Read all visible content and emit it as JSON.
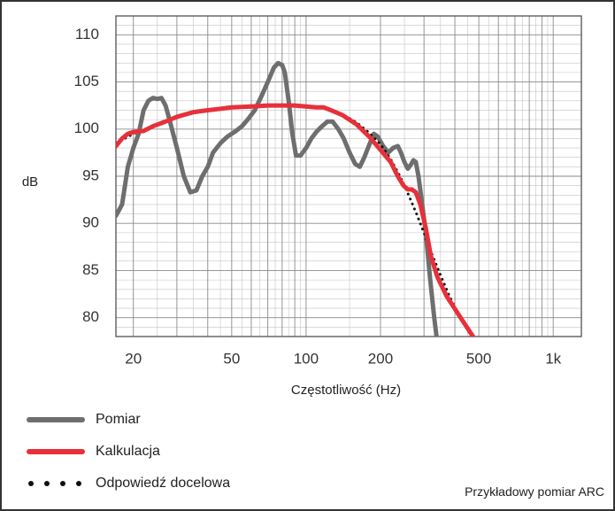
{
  "chart_data": {
    "type": "line",
    "xscale": "log",
    "xlim": [
      17,
      1300
    ],
    "ylim": [
      78,
      112
    ],
    "xlabel": "Częstotliwość (Hz)",
    "ylabel": "dB",
    "x_ticks": [
      {
        "value": 20,
        "label": "20"
      },
      {
        "value": 50,
        "label": "50"
      },
      {
        "value": 100,
        "label": "100"
      },
      {
        "value": 200,
        "label": "200"
      },
      {
        "value": 500,
        "label": "500"
      },
      {
        "value": 1000,
        "label": "1k"
      }
    ],
    "y_ticks": [
      {
        "value": 80,
        "label": "80"
      },
      {
        "value": 85,
        "label": "85"
      },
      {
        "value": 90,
        "label": "90"
      },
      {
        "value": 95,
        "label": "95"
      },
      {
        "value": 100,
        "label": "100"
      },
      {
        "value": 105,
        "label": "105"
      },
      {
        "value": 110,
        "label": "110"
      }
    ],
    "grid": true,
    "legend_position": "bottom-left",
    "series": [
      {
        "name": "Pomiar",
        "color": "#6e6e6e",
        "style": "solid",
        "points": [
          [
            17,
            90.8
          ],
          [
            18,
            92
          ],
          [
            19,
            96
          ],
          [
            20,
            98
          ],
          [
            21,
            99.5
          ],
          [
            22,
            102
          ],
          [
            23,
            103
          ],
          [
            24,
            103.3
          ],
          [
            25,
            103.2
          ],
          [
            26,
            103.3
          ],
          [
            27,
            102.5
          ],
          [
            28,
            101
          ],
          [
            30,
            98
          ],
          [
            32,
            95
          ],
          [
            34,
            93.3
          ],
          [
            36,
            93.5
          ],
          [
            38,
            95
          ],
          [
            40,
            96
          ],
          [
            42,
            97.5
          ],
          [
            45,
            98.5
          ],
          [
            48,
            99.2
          ],
          [
            52,
            99.8
          ],
          [
            55,
            100.3
          ],
          [
            58,
            101
          ],
          [
            62,
            102
          ],
          [
            66,
            103.5
          ],
          [
            70,
            105
          ],
          [
            74,
            106.5
          ],
          [
            77,
            107
          ],
          [
            80,
            106.8
          ],
          [
            82,
            106
          ],
          [
            85,
            103
          ],
          [
            88,
            99.5
          ],
          [
            91,
            97.2
          ],
          [
            95,
            97.2
          ],
          [
            100,
            98
          ],
          [
            105,
            99
          ],
          [
            110,
            99.7
          ],
          [
            116,
            100.3
          ],
          [
            122,
            100.8
          ],
          [
            128,
            100.8
          ],
          [
            135,
            100
          ],
          [
            142,
            99
          ],
          [
            150,
            97.5
          ],
          [
            158,
            96.3
          ],
          [
            165,
            96
          ],
          [
            172,
            97
          ],
          [
            180,
            98.3
          ],
          [
            188,
            99.5
          ],
          [
            195,
            99.2
          ],
          [
            205,
            98.2
          ],
          [
            215,
            97.5
          ],
          [
            225,
            98
          ],
          [
            235,
            98.2
          ],
          [
            242,
            97.5
          ],
          [
            250,
            96.5
          ],
          [
            258,
            95.8
          ],
          [
            265,
            96.2
          ],
          [
            272,
            96.7
          ],
          [
            278,
            96.5
          ],
          [
            285,
            95
          ],
          [
            295,
            92
          ],
          [
            305,
            89
          ],
          [
            318,
            84
          ],
          [
            330,
            80
          ],
          [
            338,
            77.8
          ]
        ]
      },
      {
        "name": "Kalkulacja",
        "color": "#e8303a",
        "style": "solid",
        "points": [
          [
            17,
            98.2
          ],
          [
            18,
            99
          ],
          [
            19,
            99.5
          ],
          [
            20,
            99.7
          ],
          [
            22,
            99.8
          ],
          [
            24,
            100.3
          ],
          [
            27,
            100.8
          ],
          [
            30,
            101.3
          ],
          [
            35,
            101.8
          ],
          [
            40,
            102
          ],
          [
            50,
            102.3
          ],
          [
            60,
            102.4
          ],
          [
            70,
            102.5
          ],
          [
            80,
            102.5
          ],
          [
            90,
            102.5
          ],
          [
            100,
            102.4
          ],
          [
            110,
            102.3
          ],
          [
            118,
            102.3
          ],
          [
            126,
            102
          ],
          [
            140,
            101.5
          ],
          [
            160,
            100.5
          ],
          [
            180,
            99.2
          ],
          [
            200,
            97.8
          ],
          [
            220,
            96.5
          ],
          [
            235,
            95
          ],
          [
            248,
            94
          ],
          [
            258,
            93.6
          ],
          [
            268,
            93.6
          ],
          [
            278,
            93.3
          ],
          [
            290,
            92
          ],
          [
            305,
            89.5
          ],
          [
            320,
            86.5
          ],
          [
            340,
            84.3
          ],
          [
            370,
            82.3
          ],
          [
            410,
            80.5
          ],
          [
            460,
            78.5
          ],
          [
            480,
            77.8
          ]
        ]
      },
      {
        "name": "Odpowiedź docelowa",
        "color": "#111111",
        "style": "dotted",
        "points": [
          [
            17,
            98.5
          ],
          [
            20,
            99.5
          ],
          [
            25,
            100.5
          ],
          [
            30,
            101.3
          ],
          [
            40,
            102
          ],
          [
            50,
            102.3
          ],
          [
            60,
            102.5
          ],
          [
            80,
            102.6
          ],
          [
            100,
            102.5
          ],
          [
            120,
            102.2
          ],
          [
            140,
            101.6
          ],
          [
            160,
            100.7
          ],
          [
            180,
            99.6
          ],
          [
            200,
            98.4
          ],
          [
            220,
            96.8
          ],
          [
            240,
            95
          ],
          [
            260,
            93
          ],
          [
            280,
            91
          ],
          [
            300,
            89
          ],
          [
            320,
            87
          ],
          [
            350,
            84.5
          ],
          [
            380,
            82.3
          ],
          [
            420,
            80
          ],
          [
            460,
            78.3
          ],
          [
            480,
            77.8
          ]
        ]
      }
    ]
  },
  "legend": [
    {
      "label": "Pomiar",
      "color": "#6e6e6e",
      "style": "solid"
    },
    {
      "label": "Kalkulacja",
      "color": "#e8303a",
      "style": "solid"
    },
    {
      "label": "Odpowiedź docelowa",
      "color": "#111111",
      "style": "dotted"
    }
  ],
  "caption": "Przykładowy pomiar ARC"
}
